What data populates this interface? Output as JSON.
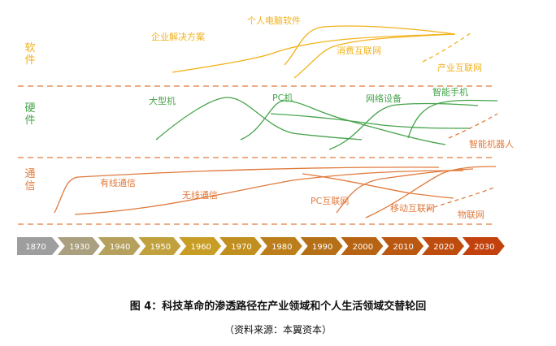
{
  "colors": {
    "software": "#F2B21C",
    "hardware": "#45A34A",
    "comms": "#E07A3C",
    "divider": "#E07A3C",
    "timeline_start": "#9E9E9E",
    "timeline_end": "#C2410C"
  },
  "sections": {
    "software": "软件",
    "hardware": "硬件",
    "comms": "通信"
  },
  "labels": {
    "enterprise_solutions": "企业解决方案",
    "pc_software": "个人电脑软件",
    "consumer_internet": "消费互联网",
    "industrial_internet": "产业互联网",
    "mainframe": "大型机",
    "pc_machine": "PC机",
    "network_equipment": "网络设备",
    "smartphone": "智能手机",
    "smart_robot": "智能机器人",
    "wired_comm": "有线通信",
    "wireless_comm": "无线通信",
    "pc_internet": "PC互联网",
    "mobile_internet": "移动互联网",
    "iot": "物联网"
  },
  "timeline": [
    "1870",
    "1930",
    "1940",
    "1950",
    "1960",
    "1970",
    "1980",
    "1990",
    "2000",
    "2010",
    "2020",
    "2030"
  ],
  "figure": {
    "title": "图 4：科技革命的渗透路径在产业领域和个人生活领域交替轮回",
    "source": "（资料来源：本翼资本）"
  }
}
